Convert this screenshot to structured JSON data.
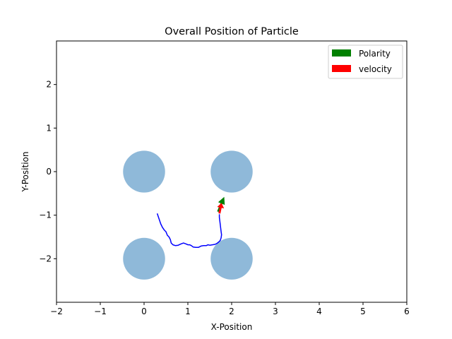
{
  "chart_data": {
    "type": "scatter",
    "title": "Overall Position of Particle",
    "xlabel": "X-Position",
    "ylabel": "Y-Position",
    "xlim": [
      -2,
      6
    ],
    "ylim": [
      -3,
      3
    ],
    "xticks": [
      -2,
      -1,
      0,
      1,
      2,
      3,
      4,
      5,
      6
    ],
    "yticks": [
      -2,
      -1,
      0,
      1,
      2
    ],
    "xtick_labels": [
      "−2",
      "−1",
      "0",
      "1",
      "2",
      "3",
      "4",
      "5",
      "6"
    ],
    "ytick_labels": [
      "−2",
      "−1",
      "0",
      "1",
      "2"
    ],
    "grid": false,
    "obstacles": {
      "color": "#8fb9d9",
      "radius": 0.48,
      "centers": [
        [
          0,
          0
        ],
        [
          2,
          0
        ],
        [
          0,
          -2
        ],
        [
          2,
          -2
        ]
      ]
    },
    "trajectory": {
      "color": "#0000ff",
      "points": [
        [
          0.3,
          -0.96
        ],
        [
          0.34,
          -1.08
        ],
        [
          0.38,
          -1.2
        ],
        [
          0.42,
          -1.28
        ],
        [
          0.46,
          -1.34
        ],
        [
          0.5,
          -1.38
        ],
        [
          0.53,
          -1.46
        ],
        [
          0.57,
          -1.5
        ],
        [
          0.6,
          -1.56
        ],
        [
          0.62,
          -1.64
        ],
        [
          0.66,
          -1.68
        ],
        [
          0.72,
          -1.7
        ],
        [
          0.78,
          -1.69
        ],
        [
          0.84,
          -1.66
        ],
        [
          0.9,
          -1.64
        ],
        [
          0.96,
          -1.66
        ],
        [
          1.0,
          -1.68
        ],
        [
          1.04,
          -1.68
        ],
        [
          1.08,
          -1.7
        ],
        [
          1.12,
          -1.73
        ],
        [
          1.18,
          -1.74
        ],
        [
          1.24,
          -1.74
        ],
        [
          1.3,
          -1.71
        ],
        [
          1.36,
          -1.7
        ],
        [
          1.42,
          -1.7
        ],
        [
          1.46,
          -1.68
        ],
        [
          1.5,
          -1.69
        ],
        [
          1.56,
          -1.68
        ],
        [
          1.62,
          -1.67
        ],
        [
          1.66,
          -1.65
        ],
        [
          1.7,
          -1.62
        ],
        [
          1.74,
          -1.58
        ],
        [
          1.76,
          -1.52
        ],
        [
          1.77,
          -1.45
        ],
        [
          1.76,
          -1.38
        ],
        [
          1.75,
          -1.3
        ],
        [
          1.74,
          -1.22
        ],
        [
          1.73,
          -1.14
        ],
        [
          1.72,
          -1.05
        ],
        [
          1.72,
          -0.98
        ]
      ]
    },
    "arrows": [
      {
        "name": "Polarity",
        "color": "#008000",
        "start": [
          1.69,
          -0.92
        ],
        "end": [
          1.83,
          -0.58
        ]
      },
      {
        "name": "velocity",
        "color": "#ff0000",
        "start": [
          1.72,
          -0.96
        ],
        "end": [
          1.77,
          -0.72
        ]
      }
    ],
    "legend": {
      "position": "top-right",
      "entries": [
        {
          "label": "Polarity",
          "color": "#008000"
        },
        {
          "label": "velocity",
          "color": "#ff0000"
        }
      ]
    }
  }
}
